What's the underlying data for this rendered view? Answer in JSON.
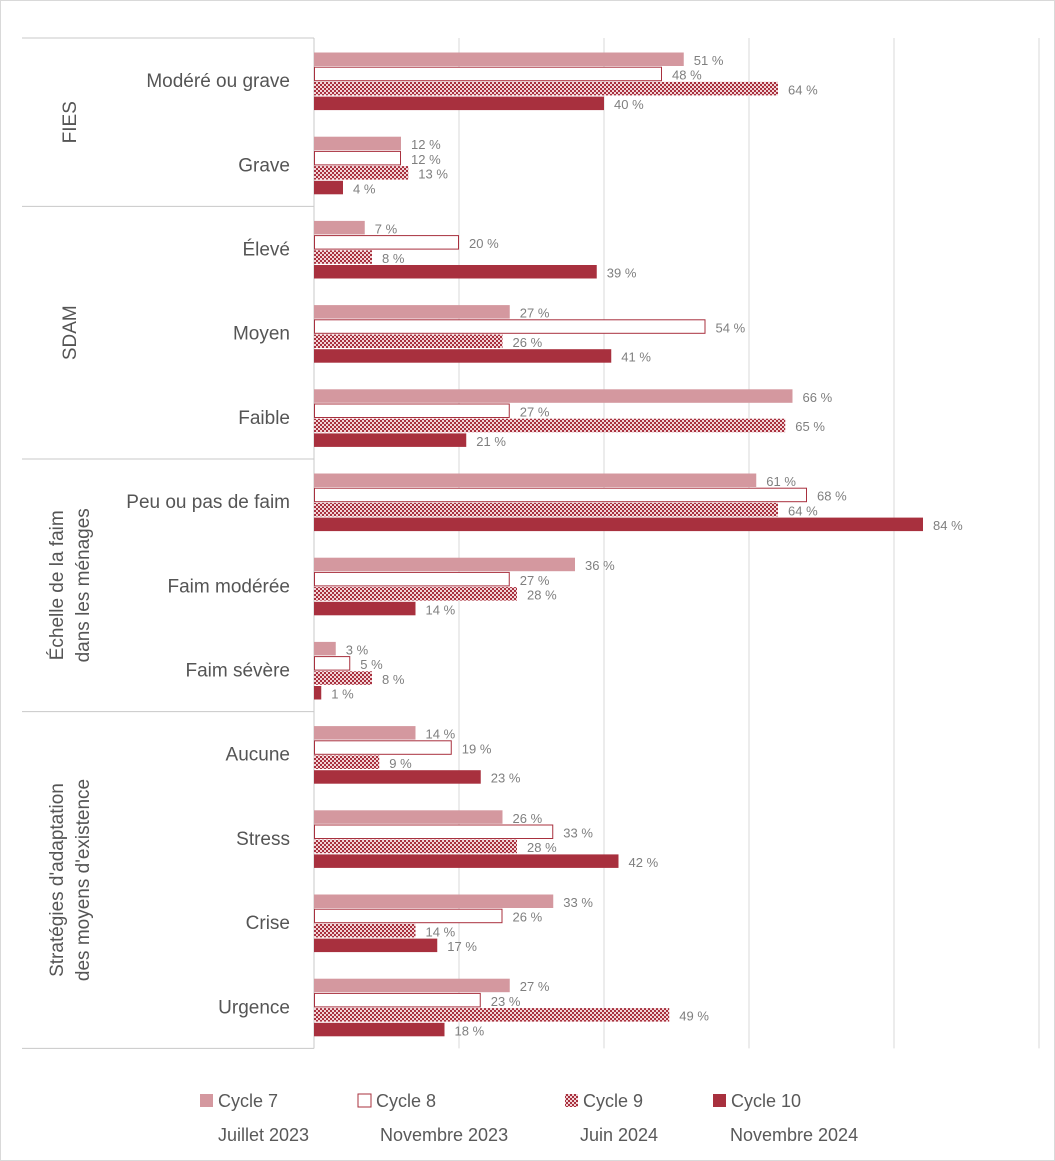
{
  "chart_data": {
    "type": "bar",
    "orientation": "horizontal",
    "title": "",
    "xlabel": "",
    "ylabel": "",
    "xlim": [
      0,
      100
    ],
    "grid": true,
    "legend_position": "bottom",
    "colors": {
      "Cycle 7": "#d4989f",
      "Cycle 8": "#ffffff",
      "Cycle 8 border": "#a8303e",
      "Cycle 9": "#a8303e",
      "Cycle 10": "#a8303e"
    },
    "groups": [
      {
        "label": "FIES",
        "categories": [
          "Modéré ou grave",
          "Grave"
        ]
      },
      {
        "label": "SDAM",
        "categories": [
          "Élevé",
          "Moyen",
          "Faible"
        ]
      },
      {
        "label_lines": [
          "Échelle de la faim",
          "dans les ménages"
        ],
        "categories": [
          "Peu ou pas de faim",
          "Faim modérée",
          "Faim sévère"
        ]
      },
      {
        "label_lines": [
          "Stratégies d'adaptation",
          "des moyens d'existence"
        ],
        "categories": [
          "Aucune",
          "Stress",
          "Crise",
          "Urgence"
        ]
      }
    ],
    "categories": [
      "Modéré ou grave",
      "Grave",
      "Élevé",
      "Moyen",
      "Faible",
      "Peu ou pas de faim",
      "Faim modérée",
      "Faim sévère",
      "Aucune",
      "Stress",
      "Crise",
      "Urgence"
    ],
    "series": [
      {
        "name": "Cycle 7",
        "subtitle": "Juillet 2023",
        "style": "solid-light",
        "values": [
          51,
          12,
          7,
          27,
          66,
          61,
          36,
          3,
          14,
          26,
          33,
          27
        ]
      },
      {
        "name": "Cycle 8",
        "subtitle": "Novembre 2023",
        "style": "outline",
        "values": [
          48,
          12,
          20,
          54,
          27,
          68,
          27,
          5,
          19,
          33,
          26,
          23
        ]
      },
      {
        "name": "Cycle 9",
        "subtitle": "Juin 2024",
        "style": "checker",
        "values": [
          64,
          13,
          8,
          26,
          65,
          64,
          28,
          8,
          9,
          28,
          14,
          49
        ]
      },
      {
        "name": "Cycle 10",
        "subtitle": "Novembre 2024",
        "style": "solid-dark",
        "values": [
          40,
          4,
          39,
          41,
          21,
          84,
          14,
          1,
          23,
          42,
          17,
          18
        ]
      }
    ],
    "value_suffix": " %"
  }
}
